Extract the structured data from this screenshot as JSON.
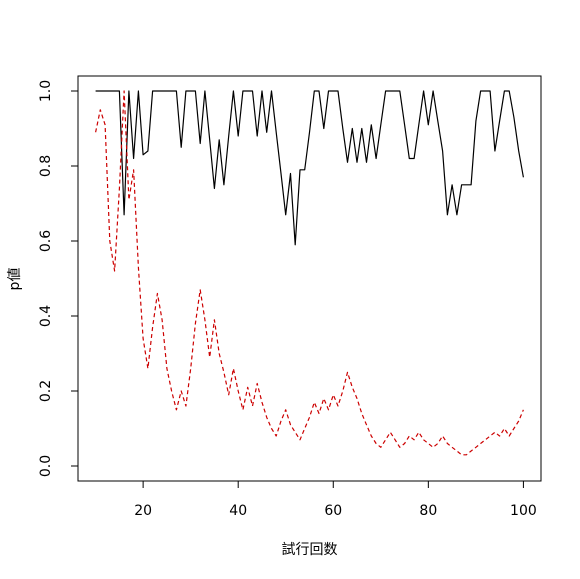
{
  "chart_data": {
    "type": "line",
    "title": "",
    "xlabel": "試行回数",
    "ylabel": "p値",
    "xlim": [
      6.3,
      103.7
    ],
    "ylim": [
      -0.04,
      1.04
    ],
    "x_ticks": [
      20,
      40,
      60,
      80,
      100
    ],
    "y_ticks": [
      0.0,
      0.2,
      0.4,
      0.6,
      0.8,
      1.0
    ],
    "x_tick_labels": [
      "20",
      "40",
      "60",
      "80",
      "100"
    ],
    "y_tick_labels": [
      "0.0",
      "0.2",
      "0.4",
      "0.6",
      "0.8",
      "1.0"
    ],
    "grid": false,
    "legend": "none",
    "x": [
      10,
      11,
      12,
      13,
      14,
      15,
      16,
      17,
      18,
      19,
      20,
      21,
      22,
      23,
      24,
      25,
      26,
      27,
      28,
      29,
      30,
      31,
      32,
      33,
      34,
      35,
      36,
      37,
      38,
      39,
      40,
      41,
      42,
      43,
      44,
      45,
      46,
      47,
      48,
      49,
      50,
      51,
      52,
      53,
      54,
      55,
      56,
      57,
      58,
      59,
      60,
      61,
      62,
      63,
      64,
      65,
      66,
      67,
      68,
      69,
      70,
      71,
      72,
      73,
      74,
      75,
      76,
      77,
      78,
      79,
      80,
      81,
      82,
      83,
      84,
      85,
      86,
      87,
      88,
      89,
      90,
      91,
      92,
      93,
      94,
      95,
      96,
      97,
      98,
      99,
      100
    ],
    "series": [
      {
        "color": "#000000",
        "dash": "solid",
        "values": [
          1.0,
          1.0,
          1.0,
          1.0,
          1.0,
          1.0,
          0.67,
          1.0,
          0.82,
          1.0,
          0.83,
          0.84,
          1.0,
          1.0,
          1.0,
          1.0,
          1.0,
          1.0,
          0.85,
          1.0,
          1.0,
          1.0,
          0.86,
          1.0,
          0.87,
          0.74,
          0.87,
          0.75,
          0.88,
          1.0,
          0.88,
          1.0,
          1.0,
          1.0,
          0.88,
          1.0,
          0.89,
          1.0,
          0.89,
          0.78,
          0.67,
          0.78,
          0.59,
          0.79,
          0.79,
          0.89,
          1.0,
          1.0,
          0.9,
          1.0,
          1.0,
          1.0,
          0.9,
          0.81,
          0.9,
          0.81,
          0.9,
          0.81,
          0.91,
          0.82,
          0.91,
          1.0,
          1.0,
          1.0,
          1.0,
          0.91,
          0.82,
          0.82,
          0.91,
          1.0,
          0.91,
          1.0,
          0.92,
          0.84,
          0.67,
          0.75,
          0.67,
          0.75,
          0.75,
          0.75,
          0.92,
          1.0,
          1.0,
          1.0,
          0.84,
          0.92,
          1.0,
          1.0,
          0.93,
          0.84,
          0.77
        ]
      },
      {
        "color": "#cc0000",
        "dash": "dashed",
        "values": [
          0.89,
          0.95,
          0.91,
          0.6,
          0.52,
          0.74,
          1.0,
          0.71,
          0.79,
          0.53,
          0.34,
          0.26,
          0.37,
          0.46,
          0.39,
          0.26,
          0.2,
          0.15,
          0.2,
          0.16,
          0.26,
          0.38,
          0.47,
          0.39,
          0.29,
          0.39,
          0.3,
          0.25,
          0.19,
          0.26,
          0.2,
          0.15,
          0.21,
          0.16,
          0.22,
          0.17,
          0.13,
          0.1,
          0.08,
          0.12,
          0.15,
          0.11,
          0.09,
          0.07,
          0.1,
          0.13,
          0.17,
          0.14,
          0.18,
          0.15,
          0.19,
          0.16,
          0.2,
          0.25,
          0.21,
          0.18,
          0.14,
          0.11,
          0.08,
          0.06,
          0.05,
          0.07,
          0.09,
          0.07,
          0.05,
          0.06,
          0.08,
          0.07,
          0.09,
          0.07,
          0.06,
          0.05,
          0.06,
          0.08,
          0.06,
          0.05,
          0.04,
          0.03,
          0.03,
          0.04,
          0.05,
          0.06,
          0.07,
          0.08,
          0.09,
          0.08,
          0.1,
          0.08,
          0.1,
          0.12,
          0.15
        ]
      }
    ]
  }
}
